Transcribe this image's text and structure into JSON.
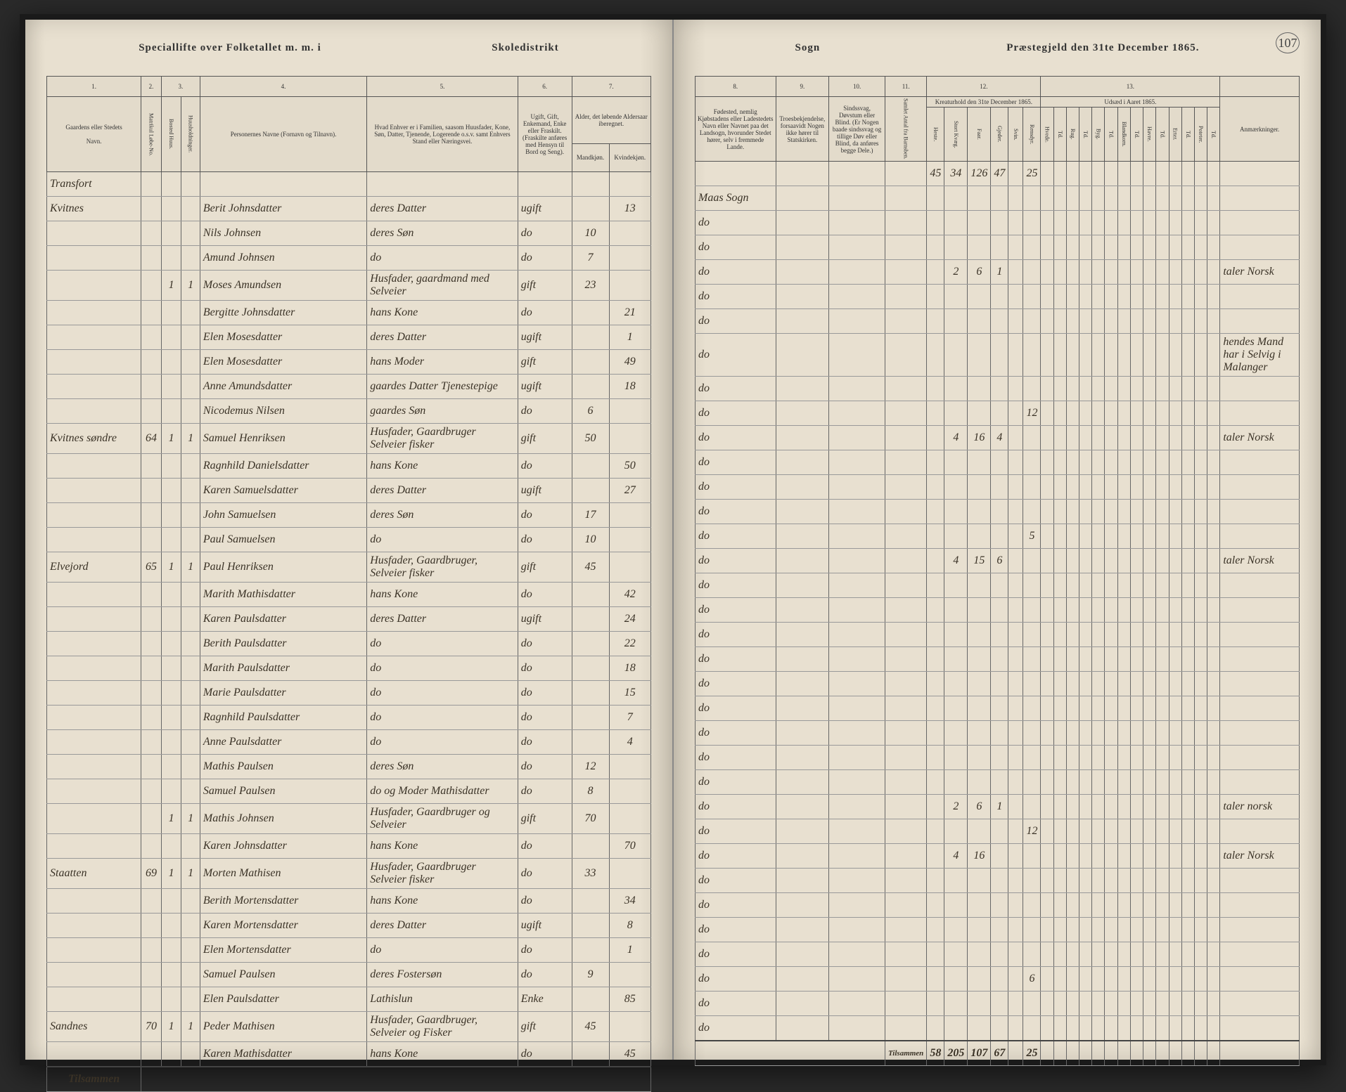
{
  "header": {
    "left_title_1": "Speciallifte over Folketallet m. m. i",
    "left_title_2": "Skoledistrikt",
    "right_title_1": "Sogn",
    "right_title_2": "Præstegjeld den 31te December 1865.",
    "page_number": "107"
  },
  "columns_left": {
    "c1": "1.",
    "c2": "2.",
    "c3": "3.",
    "c4": "4.",
    "c5": "5.",
    "c6": "6.",
    "c7": "7.",
    "h1": "Gaardens eller Stedets",
    "h1b": "Navn.",
    "h2a": "Matrikul Løbe-No.",
    "h2b": "Bosted Huus.",
    "h2c": "Huusholdninger.",
    "h4": "Personernes Navne (Fornavn og Tilnavn).",
    "h5": "Hvad Enhver er i Familien, saasom Huusfader, Kone, Søn, Datter, Tjenende, Logerende o.s.v. samt Enhvers Stand eller Næringsvei.",
    "h6": "Ugift, Gift, Enkemand, Enke eller Fraskilt. (Fraskilte anføres med Hensyn til Bord og Seng).",
    "h7": "Alder, det løbende Aldersaar iberegnet.",
    "h7a": "Mandkjøn.",
    "h7b": "Kvindekjøn."
  },
  "columns_right": {
    "c8": "8.",
    "c9": "9.",
    "c10": "10.",
    "c11": "11.",
    "c12": "12.",
    "c13": "13.",
    "h8": "Fødested, nemlig Kjøbstadens eller Ladestedets Navn eller Navnet paa det Landsogn, hvorunder Stedet hører, selv i fremmede Lande.",
    "h9": "Troesbekjendelse, forsaavidt Nogen ikke hører til Statskirken.",
    "h10": "Sindssvag, Døvstum eller Blind. (Er Nogen baade sindssvag og tillige Døv eller Blind, da anføres begge Dele.)",
    "h11": "Samlet Antal fra Barnsben.",
    "h12": "Kreaturhold den 31te December 1865.",
    "h13": "Udsæd i Aaret 1865.",
    "h12_sub": [
      "Heste.",
      "Stort Kvæg.",
      "Faar.",
      "Gjeder.",
      "Svin.",
      "Rensdyr."
    ],
    "h13_sub": [
      "Hvede.",
      "Rug.",
      "Byg.",
      "Blandkorn.",
      "Havre.",
      "Erter.",
      "Poteter."
    ],
    "h13_unit": "Td.",
    "h_remarks": "Anmærkninger."
  },
  "rows": [
    {
      "place": "Transfort",
      "mat": "",
      "hus": "",
      "hh": "",
      "name": "",
      "rel": "",
      "stat": "",
      "m": "",
      "f": "",
      "birth": "",
      "cr": [
        "45",
        "34",
        "126",
        "47",
        "",
        "25"
      ],
      "seed": [
        "",
        "",
        "",
        "",
        "",
        "",
        ""
      ],
      "rem": ""
    },
    {
      "place": "Kvitnes",
      "mat": "",
      "hus": "",
      "hh": "",
      "name": "Berit Johnsdatter",
      "rel": "deres Datter",
      "stat": "ugift",
      "m": "",
      "f": "13",
      "birth": "Maas Sogn",
      "cr": [
        "",
        "",
        "",
        "",
        "",
        ""
      ],
      "seed": [
        "",
        "",
        "",
        "",
        "",
        "",
        ""
      ],
      "rem": ""
    },
    {
      "place": "",
      "mat": "",
      "hus": "",
      "hh": "",
      "name": "Nils Johnsen",
      "rel": "deres Søn",
      "stat": "do",
      "m": "10",
      "f": "",
      "birth": "do",
      "cr": [
        "",
        "",
        "",
        "",
        "",
        ""
      ],
      "seed": [
        "",
        "",
        "",
        "",
        "",
        "",
        ""
      ],
      "rem": ""
    },
    {
      "place": "",
      "mat": "",
      "hus": "",
      "hh": "",
      "name": "Amund Johnsen",
      "rel": "do",
      "stat": "do",
      "m": "7",
      "f": "",
      "birth": "do",
      "cr": [
        "",
        "",
        "",
        "",
        "",
        ""
      ],
      "seed": [
        "",
        "",
        "",
        "",
        "",
        "",
        ""
      ],
      "rem": ""
    },
    {
      "place": "",
      "mat": "",
      "hus": "1",
      "hh": "1",
      "name": "Moses Amundsen",
      "rel": "Husfader, gaardmand med Selveier",
      "stat": "gift",
      "m": "23",
      "f": "",
      "birth": "do",
      "cr": [
        "",
        "2",
        "6",
        "1",
        "",
        ""
      ],
      "seed": [
        "",
        "",
        "",
        "",
        "",
        "",
        ""
      ],
      "rem": "taler Norsk"
    },
    {
      "place": "",
      "mat": "",
      "hus": "",
      "hh": "",
      "name": "Bergitte Johnsdatter",
      "rel": "hans Kone",
      "stat": "do",
      "m": "",
      "f": "21",
      "birth": "do",
      "cr": [
        "",
        "",
        "",
        "",
        "",
        ""
      ],
      "seed": [
        "",
        "",
        "",
        "",
        "",
        "",
        ""
      ],
      "rem": ""
    },
    {
      "place": "",
      "mat": "",
      "hus": "",
      "hh": "",
      "name": "Elen Mosesdatter",
      "rel": "deres Datter",
      "stat": "ugift",
      "m": "",
      "f": "1",
      "birth": "do",
      "cr": [
        "",
        "",
        "",
        "",
        "",
        ""
      ],
      "seed": [
        "",
        "",
        "",
        "",
        "",
        "",
        ""
      ],
      "rem": ""
    },
    {
      "place": "",
      "mat": "",
      "hus": "",
      "hh": "",
      "name": "Elen Mosesdatter",
      "rel": "hans Moder",
      "stat": "gift",
      "m": "",
      "f": "49",
      "birth": "do",
      "cr": [
        "",
        "",
        "",
        "",
        "",
        ""
      ],
      "seed": [
        "",
        "",
        "",
        "",
        "",
        "",
        ""
      ],
      "rem": "hendes Mand har i Selvig i Malanger"
    },
    {
      "place": "",
      "mat": "",
      "hus": "",
      "hh": "",
      "name": "Anne Amundsdatter",
      "rel": "gaardes Datter Tjenestepige",
      "stat": "ugift",
      "m": "",
      "f": "18",
      "birth": "do",
      "cr": [
        "",
        "",
        "",
        "",
        "",
        ""
      ],
      "seed": [
        "",
        "",
        "",
        "",
        "",
        "",
        ""
      ],
      "rem": ""
    },
    {
      "place": "",
      "mat": "",
      "hus": "",
      "hh": "",
      "name": "Nicodemus Nilsen",
      "rel": "gaardes Søn",
      "stat": "do",
      "m": "6",
      "f": "",
      "birth": "do",
      "cr": [
        "",
        "",
        "",
        "",
        "",
        "12"
      ],
      "seed": [
        "",
        "",
        "",
        "",
        "",
        "",
        ""
      ],
      "rem": ""
    },
    {
      "place": "Kvitnes søndre",
      "mat": "64",
      "hus": "1",
      "hh": "1",
      "name": "Samuel Henriksen",
      "rel": "Husfader, Gaardbruger Selveier fisker",
      "stat": "gift",
      "m": "50",
      "f": "",
      "birth": "do",
      "cr": [
        "",
        "4",
        "16",
        "4",
        "",
        ""
      ],
      "seed": [
        "",
        "",
        "",
        "",
        "",
        "",
        ""
      ],
      "rem": "taler Norsk"
    },
    {
      "place": "",
      "mat": "",
      "hus": "",
      "hh": "",
      "name": "Ragnhild Danielsdatter",
      "rel": "hans Kone",
      "stat": "do",
      "m": "",
      "f": "50",
      "birth": "do",
      "cr": [
        "",
        "",
        "",
        "",
        "",
        ""
      ],
      "seed": [
        "",
        "",
        "",
        "",
        "",
        "",
        ""
      ],
      "rem": ""
    },
    {
      "place": "",
      "mat": "",
      "hus": "",
      "hh": "",
      "name": "Karen Samuelsdatter",
      "rel": "deres Datter",
      "stat": "ugift",
      "m": "",
      "f": "27",
      "birth": "do",
      "cr": [
        "",
        "",
        "",
        "",
        "",
        ""
      ],
      "seed": [
        "",
        "",
        "",
        "",
        "",
        "",
        ""
      ],
      "rem": ""
    },
    {
      "place": "",
      "mat": "",
      "hus": "",
      "hh": "",
      "name": "John Samuelsen",
      "rel": "deres Søn",
      "stat": "do",
      "m": "17",
      "f": "",
      "birth": "do",
      "cr": [
        "",
        "",
        "",
        "",
        "",
        ""
      ],
      "seed": [
        "",
        "",
        "",
        "",
        "",
        "",
        ""
      ],
      "rem": ""
    },
    {
      "place": "",
      "mat": "",
      "hus": "",
      "hh": "",
      "name": "Paul Samuelsen",
      "rel": "do",
      "stat": "do",
      "m": "10",
      "f": "",
      "birth": "do",
      "cr": [
        "",
        "",
        "",
        "",
        "",
        "5"
      ],
      "seed": [
        "",
        "",
        "",
        "",
        "",
        "",
        ""
      ],
      "rem": ""
    },
    {
      "place": "Elvejord",
      "mat": "65",
      "hus": "1",
      "hh": "1",
      "name": "Paul Henriksen",
      "rel": "Husfader, Gaardbruger, Selveier fisker",
      "stat": "gift",
      "m": "45",
      "f": "",
      "birth": "do",
      "cr": [
        "",
        "4",
        "15",
        "6",
        "",
        ""
      ],
      "seed": [
        "",
        "",
        "",
        "",
        "",
        "",
        ""
      ],
      "rem": "taler Norsk"
    },
    {
      "place": "",
      "mat": "",
      "hus": "",
      "hh": "",
      "name": "Marith Mathisdatter",
      "rel": "hans Kone",
      "stat": "do",
      "m": "",
      "f": "42",
      "birth": "do",
      "cr": [
        "",
        "",
        "",
        "",
        "",
        ""
      ],
      "seed": [
        "",
        "",
        "",
        "",
        "",
        "",
        ""
      ],
      "rem": ""
    },
    {
      "place": "",
      "mat": "",
      "hus": "",
      "hh": "",
      "name": "Karen Paulsdatter",
      "rel": "deres Datter",
      "stat": "ugift",
      "m": "",
      "f": "24",
      "birth": "do",
      "cr": [
        "",
        "",
        "",
        "",
        "",
        ""
      ],
      "seed": [
        "",
        "",
        "",
        "",
        "",
        "",
        ""
      ],
      "rem": ""
    },
    {
      "place": "",
      "mat": "",
      "hus": "",
      "hh": "",
      "name": "Berith Paulsdatter",
      "rel": "do",
      "stat": "do",
      "m": "",
      "f": "22",
      "birth": "do",
      "cr": [
        "",
        "",
        "",
        "",
        "",
        ""
      ],
      "seed": [
        "",
        "",
        "",
        "",
        "",
        "",
        ""
      ],
      "rem": ""
    },
    {
      "place": "",
      "mat": "",
      "hus": "",
      "hh": "",
      "name": "Marith Paulsdatter",
      "rel": "do",
      "stat": "do",
      "m": "",
      "f": "18",
      "birth": "do",
      "cr": [
        "",
        "",
        "",
        "",
        "",
        ""
      ],
      "seed": [
        "",
        "",
        "",
        "",
        "",
        "",
        ""
      ],
      "rem": ""
    },
    {
      "place": "",
      "mat": "",
      "hus": "",
      "hh": "",
      "name": "Marie Paulsdatter",
      "rel": "do",
      "stat": "do",
      "m": "",
      "f": "15",
      "birth": "do",
      "cr": [
        "",
        "",
        "",
        "",
        "",
        ""
      ],
      "seed": [
        "",
        "",
        "",
        "",
        "",
        "",
        ""
      ],
      "rem": ""
    },
    {
      "place": "",
      "mat": "",
      "hus": "",
      "hh": "",
      "name": "Ragnhild Paulsdatter",
      "rel": "do",
      "stat": "do",
      "m": "",
      "f": "7",
      "birth": "do",
      "cr": [
        "",
        "",
        "",
        "",
        "",
        ""
      ],
      "seed": [
        "",
        "",
        "",
        "",
        "",
        "",
        ""
      ],
      "rem": ""
    },
    {
      "place": "",
      "mat": "",
      "hus": "",
      "hh": "",
      "name": "Anne Paulsdatter",
      "rel": "do",
      "stat": "do",
      "m": "",
      "f": "4",
      "birth": "do",
      "cr": [
        "",
        "",
        "",
        "",
        "",
        ""
      ],
      "seed": [
        "",
        "",
        "",
        "",
        "",
        "",
        ""
      ],
      "rem": ""
    },
    {
      "place": "",
      "mat": "",
      "hus": "",
      "hh": "",
      "name": "Mathis Paulsen",
      "rel": "deres Søn",
      "stat": "do",
      "m": "12",
      "f": "",
      "birth": "do",
      "cr": [
        "",
        "",
        "",
        "",
        "",
        ""
      ],
      "seed": [
        "",
        "",
        "",
        "",
        "",
        "",
        ""
      ],
      "rem": ""
    },
    {
      "place": "",
      "mat": "",
      "hus": "",
      "hh": "",
      "name": "Samuel Paulsen",
      "rel": "do og Moder Mathisdatter",
      "stat": "do",
      "m": "8",
      "f": "",
      "birth": "do",
      "cr": [
        "",
        "",
        "",
        "",
        "",
        ""
      ],
      "seed": [
        "",
        "",
        "",
        "",
        "",
        "",
        ""
      ],
      "rem": ""
    },
    {
      "place": "",
      "mat": "",
      "hus": "1",
      "hh": "1",
      "name": "Mathis Johnsen",
      "rel": "Husfader, Gaardbruger og Selveier",
      "stat": "gift",
      "m": "70",
      "f": "",
      "birth": "do",
      "cr": [
        "",
        "2",
        "6",
        "1",
        "",
        ""
      ],
      "seed": [
        "",
        "",
        "",
        "",
        "",
        "",
        ""
      ],
      "rem": "taler norsk"
    },
    {
      "place": "",
      "mat": "",
      "hus": "",
      "hh": "",
      "name": "Karen Johnsdatter",
      "rel": "hans Kone",
      "stat": "do",
      "m": "",
      "f": "70",
      "birth": "do",
      "cr": [
        "",
        "",
        "",
        "",
        "",
        "12"
      ],
      "seed": [
        "",
        "",
        "",
        "",
        "",
        "",
        ""
      ],
      "rem": ""
    },
    {
      "place": "Staatten",
      "mat": "69",
      "hus": "1",
      "hh": "1",
      "name": "Morten Mathisen",
      "rel": "Husfader, Gaardbruger Selveier fisker",
      "stat": "do",
      "m": "33",
      "f": "",
      "birth": "do",
      "cr": [
        "",
        "4",
        "16",
        "",
        "",
        ""
      ],
      "seed": [
        "",
        "",
        "",
        "",
        "",
        "",
        ""
      ],
      "rem": "taler Norsk"
    },
    {
      "place": "",
      "mat": "",
      "hus": "",
      "hh": "",
      "name": "Berith Mortensdatter",
      "rel": "hans Kone",
      "stat": "do",
      "m": "",
      "f": "34",
      "birth": "do",
      "cr": [
        "",
        "",
        "",
        "",
        "",
        ""
      ],
      "seed": [
        "",
        "",
        "",
        "",
        "",
        "",
        ""
      ],
      "rem": ""
    },
    {
      "place": "",
      "mat": "",
      "hus": "",
      "hh": "",
      "name": "Karen Mortensdatter",
      "rel": "deres Datter",
      "stat": "ugift",
      "m": "",
      "f": "8",
      "birth": "do",
      "cr": [
        "",
        "",
        "",
        "",
        "",
        ""
      ],
      "seed": [
        "",
        "",
        "",
        "",
        "",
        "",
        ""
      ],
      "rem": ""
    },
    {
      "place": "",
      "mat": "",
      "hus": "",
      "hh": "",
      "name": "Elen Mortensdatter",
      "rel": "do",
      "stat": "do",
      "m": "",
      "f": "1",
      "birth": "do",
      "cr": [
        "",
        "",
        "",
        "",
        "",
        ""
      ],
      "seed": [
        "",
        "",
        "",
        "",
        "",
        "",
        ""
      ],
      "rem": ""
    },
    {
      "place": "",
      "mat": "",
      "hus": "",
      "hh": "",
      "name": "Samuel Paulsen",
      "rel": "deres Fostersøn",
      "stat": "do",
      "m": "9",
      "f": "",
      "birth": "do",
      "cr": [
        "",
        "",
        "",
        "",
        "",
        ""
      ],
      "seed": [
        "",
        "",
        "",
        "",
        "",
        "",
        ""
      ],
      "rem": ""
    },
    {
      "place": "",
      "mat": "",
      "hus": "",
      "hh": "",
      "name": "Elen Paulsdatter",
      "rel": "Lathislun",
      "stat": "Enke",
      "m": "",
      "f": "85",
      "birth": "do",
      "cr": [
        "",
        "",
        "",
        "",
        "",
        "6"
      ],
      "seed": [
        "",
        "",
        "",
        "",
        "",
        "",
        ""
      ],
      "rem": ""
    },
    {
      "place": "Sandnes",
      "mat": "70",
      "hus": "1",
      "hh": "1",
      "name": "Peder Mathisen",
      "rel": "Husfader, Gaardbruger, Selveier og Fisker",
      "stat": "gift",
      "m": "45",
      "f": "",
      "birth": "do",
      "cr": [
        "",
        "",
        "",
        "",
        "",
        ""
      ],
      "seed": [
        "",
        "",
        "",
        "",
        "",
        "",
        ""
      ],
      "rem": ""
    },
    {
      "place": "",
      "mat": "",
      "hus": "",
      "hh": "",
      "name": "Karen Mathisdatter",
      "rel": "hans Kone",
      "stat": "do",
      "m": "",
      "f": "45",
      "birth": "do",
      "cr": [
        "",
        "",
        "",
        "",
        "",
        ""
      ],
      "seed": [
        "",
        "",
        "",
        "",
        "",
        "",
        ""
      ],
      "rem": ""
    }
  ],
  "footer": {
    "label": "Tilsammen",
    "totals_cr": [
      "58",
      "205",
      "107",
      "67",
      "",
      "25"
    ],
    "totals_seed": [
      "",
      "",
      "",
      "",
      "",
      "",
      ""
    ]
  },
  "colors": {
    "paper": "#e8e0d0",
    "ink": "#3a3226",
    "rule": "#666666"
  }
}
